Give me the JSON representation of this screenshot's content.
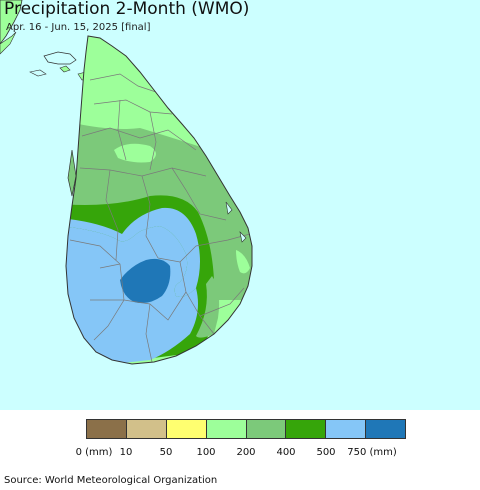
{
  "title": "Precipitation 2-Month (WMO)",
  "subtitle": "Apr. 16 - Jun. 15, 2025 [final]",
  "colors": {
    "ocean": "#ccffff",
    "outline": "#333333",
    "district_lines": "#7a7a7a"
  },
  "legend": {
    "colors": [
      "#8b7049",
      "#d2c08a",
      "#ffff70",
      "#9dff9a",
      "#7cc97a",
      "#36a50a",
      "#85c6f7",
      "#1f77b7"
    ],
    "tick_labels": [
      "0 (mm)",
      "10",
      "50",
      "100",
      "200",
      "400",
      "500",
      "750 (mm)"
    ]
  },
  "source": "Source: World Meteorological Organization"
}
